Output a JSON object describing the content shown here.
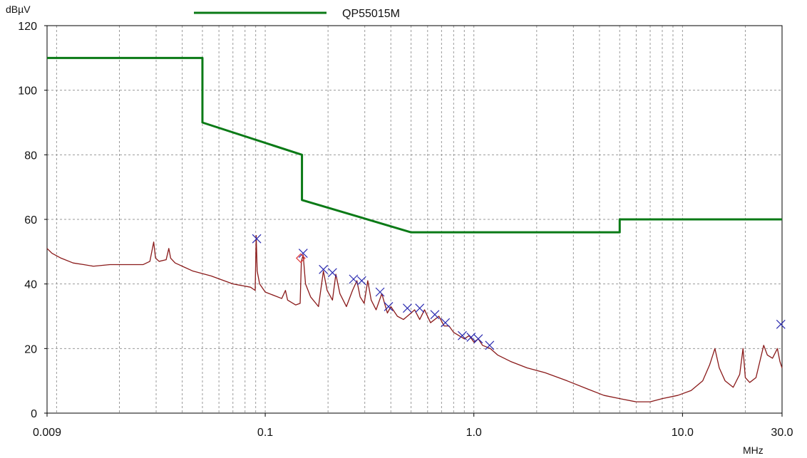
{
  "chart_data": {
    "type": "line",
    "x_scale": "log",
    "xlim": [
      0.009,
      30.0
    ],
    "ylim": [
      0,
      120
    ],
    "grid": true,
    "legend_position": "top-center",
    "ylabel": "dBµV",
    "xlabel": "MHz",
    "y_ticks": [
      "0",
      "20",
      "40",
      "60",
      "80",
      "100",
      "120"
    ],
    "x_tick_labels": [
      {
        "value": 0.009,
        "label": "0.009"
      },
      {
        "value": 0.1,
        "label": "0.1"
      },
      {
        "value": 1.0,
        "label": "1.0"
      },
      {
        "value": 10.0,
        "label": "10.0"
      },
      {
        "value": 30.0,
        "label": "30.0"
      }
    ],
    "colors": {
      "limit": "#0a7a16",
      "trace": "#8a1a1a",
      "marker": "#2a2ab0",
      "diamond": "#e04040",
      "grid": "#9a9a9a",
      "axis": "#000000"
    },
    "series": [
      {
        "name": "QP55015M",
        "style": "step-limit",
        "points": [
          [
            0.009,
            110
          ],
          [
            0.05,
            110
          ],
          [
            0.05,
            90
          ],
          [
            0.15,
            80
          ],
          [
            0.15,
            66
          ],
          [
            0.5,
            56
          ],
          [
            5.0,
            56
          ],
          [
            5.0,
            60
          ],
          [
            30.0,
            60
          ]
        ]
      },
      {
        "style": "measurement",
        "points": [
          [
            0.009,
            51
          ],
          [
            0.0095,
            49.5
          ],
          [
            0.0105,
            48
          ],
          [
            0.012,
            46.5
          ],
          [
            0.0135,
            46
          ],
          [
            0.015,
            45.5
          ],
          [
            0.018,
            46
          ],
          [
            0.022,
            46
          ],
          [
            0.026,
            46
          ],
          [
            0.028,
            47
          ],
          [
            0.0292,
            53
          ],
          [
            0.0298,
            48
          ],
          [
            0.031,
            47
          ],
          [
            0.0335,
            47.5
          ],
          [
            0.0345,
            51
          ],
          [
            0.0352,
            48
          ],
          [
            0.037,
            46.5
          ],
          [
            0.045,
            44
          ],
          [
            0.055,
            42.5
          ],
          [
            0.07,
            40
          ],
          [
            0.085,
            39
          ],
          [
            0.0895,
            38
          ],
          [
            0.0905,
            55
          ],
          [
            0.0915,
            44
          ],
          [
            0.094,
            40
          ],
          [
            0.1,
            37.5
          ],
          [
            0.12,
            35.5
          ],
          [
            0.125,
            38
          ],
          [
            0.128,
            35
          ],
          [
            0.14,
            33.5
          ],
          [
            0.147,
            34
          ],
          [
            0.149,
            47
          ],
          [
            0.152,
            49
          ],
          [
            0.156,
            40
          ],
          [
            0.165,
            36
          ],
          [
            0.18,
            33
          ],
          [
            0.19,
            44
          ],
          [
            0.198,
            38
          ],
          [
            0.21,
            35
          ],
          [
            0.218,
            43
          ],
          [
            0.228,
            37
          ],
          [
            0.245,
            33
          ],
          [
            0.262,
            38
          ],
          [
            0.275,
            41
          ],
          [
            0.285,
            36
          ],
          [
            0.298,
            34
          ],
          [
            0.31,
            41
          ],
          [
            0.322,
            35
          ],
          [
            0.34,
            32
          ],
          [
            0.362,
            37
          ],
          [
            0.385,
            31
          ],
          [
            0.4,
            33
          ],
          [
            0.43,
            30
          ],
          [
            0.46,
            29
          ],
          [
            0.5,
            31
          ],
          [
            0.52,
            32
          ],
          [
            0.55,
            29
          ],
          [
            0.58,
            32
          ],
          [
            0.62,
            28
          ],
          [
            0.68,
            30
          ],
          [
            0.72,
            27
          ],
          [
            0.76,
            27
          ],
          [
            0.8,
            25
          ],
          [
            0.9,
            23
          ],
          [
            0.95,
            24
          ],
          [
            1.0,
            22
          ],
          [
            1.05,
            23
          ],
          [
            1.1,
            21
          ],
          [
            1.2,
            20
          ],
          [
            1.3,
            18
          ],
          [
            1.5,
            16
          ],
          [
            1.8,
            14
          ],
          [
            2.2,
            12.5
          ],
          [
            2.8,
            10
          ],
          [
            3.5,
            7.5
          ],
          [
            4.2,
            5.5
          ],
          [
            5.0,
            4.5
          ],
          [
            6.0,
            3.5
          ],
          [
            7.0,
            3.5
          ],
          [
            8.0,
            4.5
          ],
          [
            9.5,
            5.5
          ],
          [
            11.0,
            7
          ],
          [
            12.5,
            10
          ],
          [
            13.5,
            15
          ],
          [
            14.3,
            20
          ],
          [
            15.0,
            14
          ],
          [
            16.0,
            10
          ],
          [
            17.5,
            8
          ],
          [
            18.8,
            12
          ],
          [
            19.5,
            20
          ],
          [
            20.0,
            11
          ],
          [
            21.0,
            9.5
          ],
          [
            22.5,
            11
          ],
          [
            24.5,
            21
          ],
          [
            25.5,
            18
          ],
          [
            27.0,
            17
          ],
          [
            28.5,
            20
          ],
          [
            29.3,
            16
          ],
          [
            30.0,
            14
          ]
        ]
      }
    ],
    "peak_markers": [
      [
        0.091,
        54
      ],
      [
        0.152,
        49.5
      ],
      [
        0.19,
        44.5
      ],
      [
        0.21,
        43.5
      ],
      [
        0.265,
        41.5
      ],
      [
        0.29,
        41
      ],
      [
        0.355,
        37.5
      ],
      [
        0.39,
        33
      ],
      [
        0.48,
        32.5
      ],
      [
        0.55,
        32.5
      ],
      [
        0.65,
        30.5
      ],
      [
        0.73,
        28
      ],
      [
        0.88,
        24
      ],
      [
        0.97,
        23.5
      ],
      [
        1.05,
        23
      ],
      [
        1.19,
        21
      ],
      [
        29.6,
        27.5
      ]
    ],
    "diamond_markers": [
      [
        0.148,
        48
      ]
    ]
  }
}
